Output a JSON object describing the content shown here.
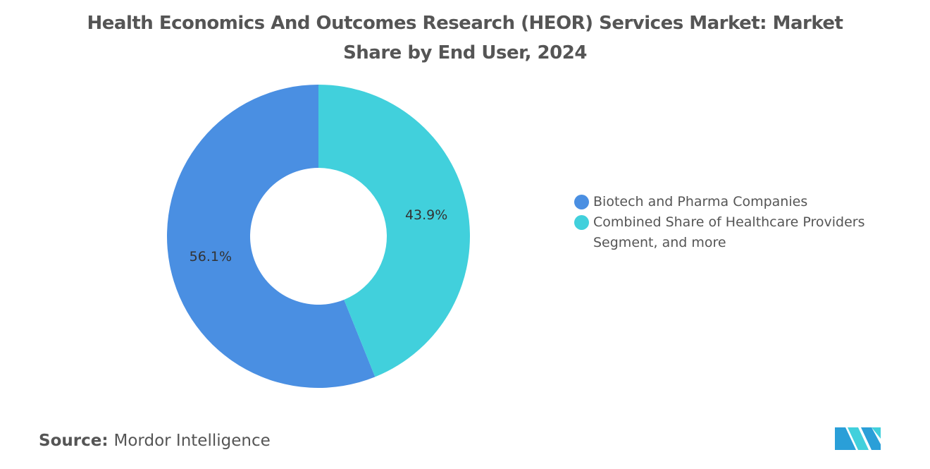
{
  "chart_data": {
    "type": "pie",
    "donut": true,
    "title": "Health Economics And Outcomes Research (HEOR) Services Market: Market Share by End User, 2024",
    "categories": [
      "Biotech and Pharma Companies",
      "Combined Share of Healthcare Providers Segment, and more"
    ],
    "values": [
      56.1,
      43.9
    ],
    "value_labels": [
      "56.1%",
      "43.9%"
    ],
    "colors": [
      "#4a8fe2",
      "#41d0dc"
    ],
    "legend": "right",
    "source_label": "Source:",
    "source": "Mordor Intelligence"
  }
}
